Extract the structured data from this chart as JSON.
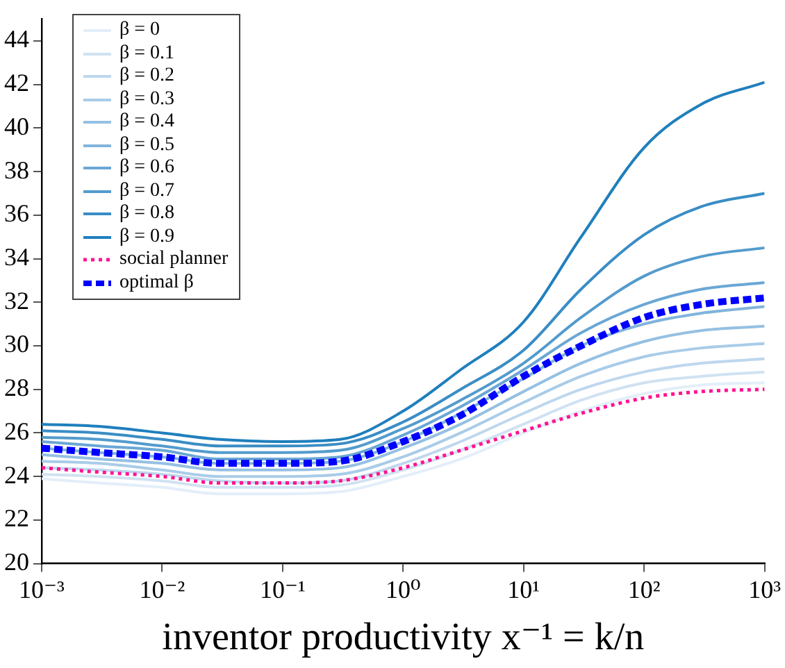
{
  "chart_data": {
    "type": "line",
    "xlabel": "inventor productivity x⁻¹ = k/n",
    "x": [
      0.001,
      0.003,
      0.01,
      0.03,
      0.1,
      0.3,
      1,
      3,
      10,
      30,
      100,
      300,
      1000
    ],
    "series": [
      {
        "name": "β = 0",
        "color": "#e3eef9",
        "values": [
          23.9,
          23.7,
          23.5,
          23.2,
          23.2,
          23.3,
          24.0,
          24.8,
          26.0,
          27.0,
          27.8,
          28.2,
          28.3
        ]
      },
      {
        "name": "β = 0.1",
        "color": "#d0e2f2",
        "values": [
          24.1,
          24.0,
          23.8,
          23.5,
          23.5,
          23.6,
          24.3,
          25.2,
          26.4,
          27.5,
          28.3,
          28.6,
          28.8
        ]
      },
      {
        "name": "β = 0.2",
        "color": "#bdd7ee",
        "values": [
          24.4,
          24.3,
          24.1,
          23.8,
          23.7,
          23.8,
          24.6,
          25.6,
          26.9,
          28.0,
          28.8,
          29.2,
          29.4
        ]
      },
      {
        "name": "β = 0.3",
        "color": "#a9cce8",
        "values": [
          24.7,
          24.6,
          24.3,
          24.0,
          24.0,
          24.1,
          24.9,
          26.0,
          27.4,
          28.6,
          29.5,
          29.9,
          30.1
        ]
      },
      {
        "name": "β = 0.4",
        "color": "#95c0e2",
        "values": [
          25.0,
          24.8,
          24.6,
          24.3,
          24.3,
          24.4,
          25.3,
          26.4,
          27.9,
          29.2,
          30.2,
          30.7,
          30.9
        ]
      },
      {
        "name": "β = 0.5",
        "color": "#80b4dc",
        "values": [
          25.3,
          25.1,
          24.9,
          24.6,
          24.6,
          24.7,
          25.6,
          26.9,
          28.5,
          30.0,
          31.0,
          31.5,
          31.8
        ]
      },
      {
        "name": "β = 0.6",
        "color": "#6aa7d5",
        "values": [
          25.6,
          25.4,
          25.2,
          24.8,
          24.8,
          24.9,
          25.9,
          27.2,
          28.9,
          30.6,
          31.9,
          32.6,
          32.9
        ]
      },
      {
        "name": "β = 0.7",
        "color": "#539bcd",
        "values": [
          25.8,
          25.7,
          25.4,
          25.1,
          25.1,
          25.2,
          26.2,
          27.5,
          29.2,
          31.3,
          33.2,
          34.1,
          34.5
        ]
      },
      {
        "name": "β = 0.8",
        "color": "#3a8dc5",
        "values": [
          26.1,
          26.0,
          25.7,
          25.4,
          25.4,
          25.5,
          26.5,
          28.0,
          29.8,
          32.6,
          35.1,
          36.4,
          37.0
        ]
      },
      {
        "name": "β = 0.9",
        "color": "#1f7fbd",
        "values": [
          26.4,
          26.3,
          26.0,
          25.7,
          25.6,
          25.7,
          27.0,
          28.9,
          31.1,
          35.0,
          39.1,
          41.1,
          42.1
        ]
      },
      {
        "name": "social planner",
        "color": "#ff1493",
        "line_style": "dotted",
        "values": [
          24.4,
          24.2,
          24.0,
          23.7,
          23.7,
          23.8,
          24.4,
          25.2,
          26.1,
          26.9,
          27.6,
          27.9,
          28.0
        ]
      },
      {
        "name": "optimal β",
        "color": "#0000ff",
        "line_style": "dashed",
        "values": [
          25.3,
          25.1,
          24.9,
          24.6,
          24.6,
          24.7,
          25.6,
          26.8,
          28.6,
          30.0,
          31.3,
          31.9,
          32.2
        ]
      }
    ],
    "log": "x",
    "xlim": [
      0.001,
      1000
    ],
    "xticks": [
      {
        "value": 0.001,
        "label": "10⁻³"
      },
      {
        "value": 0.01,
        "label": "10⁻²"
      },
      {
        "value": 0.1,
        "label": "10⁻¹"
      },
      {
        "value": 1,
        "label": "10⁰"
      },
      {
        "value": 10,
        "label": "10¹"
      },
      {
        "value": 100,
        "label": "10²"
      },
      {
        "value": 1000,
        "label": "10³"
      }
    ],
    "ylim": [
      20,
      45
    ],
    "yticks": [
      20,
      22,
      24,
      26,
      28,
      30,
      32,
      34,
      36,
      38,
      40,
      42,
      44
    ],
    "grid": false,
    "legend": "top left",
    "line_style": "solid",
    "marker": "none"
  }
}
